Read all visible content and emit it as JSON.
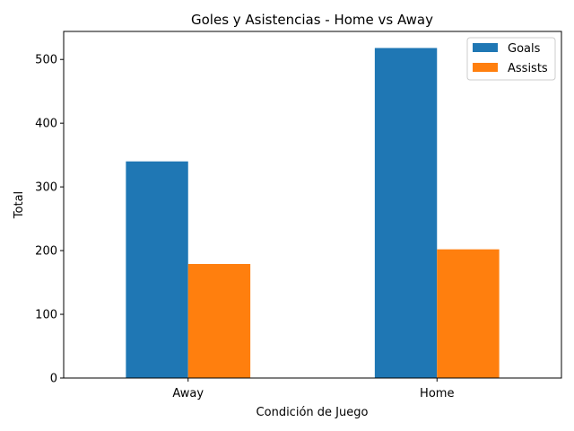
{
  "chart_data": {
    "type": "bar",
    "title": "Goles y Asistencias - Home vs Away",
    "xlabel": "Condición de Juego",
    "ylabel": "Total",
    "categories": [
      "Away",
      "Home"
    ],
    "series": [
      {
        "name": "Goals",
        "values": [
          340,
          518
        ],
        "color": "#1f77b4"
      },
      {
        "name": "Assists",
        "values": [
          179,
          202
        ],
        "color": "#ff7f0e"
      }
    ],
    "ylim": [
      0,
      544
    ],
    "yticks": [
      0,
      100,
      200,
      300,
      400,
      500
    ],
    "grid": false,
    "legend_position": "top-right"
  }
}
